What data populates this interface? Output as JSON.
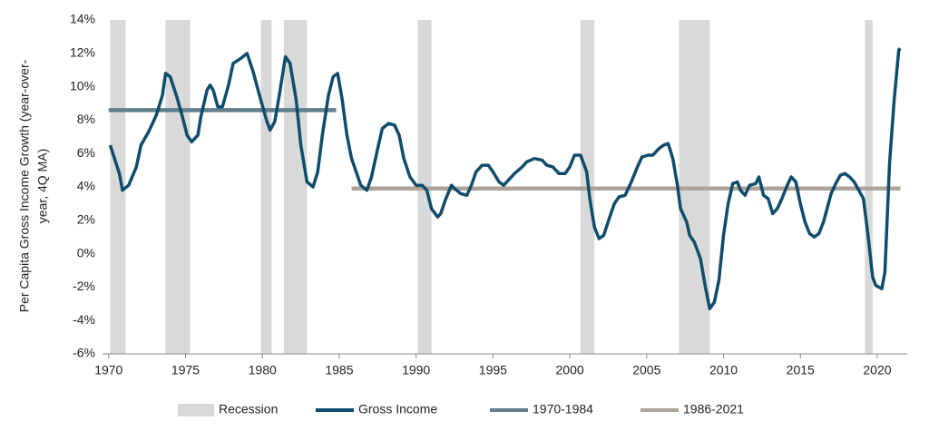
{
  "chart_data": {
    "type": "line",
    "y_label": [
      "Per Capita Gross Income Growth (year-over-",
      "year, 4Q MA)"
    ],
    "xlim": [
      1969.6,
      2021.95
    ],
    "xticks": [
      1970,
      1975,
      1980,
      1985,
      1990,
      1995,
      2000,
      2005,
      2010,
      2015,
      2020
    ],
    "ylim": [
      -6,
      14
    ],
    "yticks": [
      {
        "value": -6,
        "label": "-6%"
      },
      {
        "value": -4,
        "label": "-4%"
      },
      {
        "value": -2,
        "label": "-2%"
      },
      {
        "value": 0,
        "label": "0%"
      },
      {
        "value": 2,
        "label": "2%"
      },
      {
        "value": 4,
        "label": "4%"
      },
      {
        "value": 6,
        "label": "6%"
      },
      {
        "value": 8,
        "label": "8%"
      },
      {
        "value": 10,
        "label": "10%"
      },
      {
        "value": 12,
        "label": "12%"
      },
      {
        "value": 14,
        "label": "14%"
      }
    ],
    "grid": false,
    "legend": "bottom",
    "bands": {
      "name": "Recession",
      "color": "#d9d9d9",
      "ranges": [
        [
          1970.1,
          1971.1
        ],
        [
          1973.7,
          1975.3
        ],
        [
          1979.9,
          1980.6
        ],
        [
          1981.4,
          1982.9
        ],
        [
          1990.1,
          1991.0
        ],
        [
          2000.7,
          2001.6
        ],
        [
          2007.1,
          2009.1
        ],
        [
          2019.2,
          2019.7
        ]
      ]
    },
    "series": [
      {
        "name": "Gross Income",
        "color": "#0f4c6b",
        "x": [
          1970.1,
          1970.7,
          1970.9,
          1971.3,
          1971.8,
          1972.1,
          1972.6,
          1973.1,
          1973.5,
          1973.7,
          1974.0,
          1974.4,
          1974.8,
          1975.1,
          1975.4,
          1975.8,
          1976.0,
          1976.4,
          1976.6,
          1976.8,
          1977.1,
          1977.4,
          1977.8,
          1978.1,
          1978.6,
          1979.0,
          1979.4,
          1979.9,
          1980.3,
          1980.5,
          1980.8,
          1981.1,
          1981.5,
          1981.8,
          1982.2,
          1982.5,
          1982.9,
          1983.3,
          1983.6,
          1983.9,
          1984.3,
          1984.6,
          1984.9,
          1985.2,
          1985.5,
          1985.8,
          1986.1,
          1986.4,
          1986.8,
          1987.1,
          1987.5,
          1987.8,
          1988.2,
          1988.6,
          1988.9,
          1989.2,
          1989.6,
          1990.0,
          1990.4,
          1990.7,
          1991.0,
          1991.4,
          1991.6,
          1991.9,
          1992.3,
          1992.5,
          1992.9,
          1993.3,
          1993.6,
          1993.9,
          1994.3,
          1994.7,
          1995.0,
          1995.4,
          1995.7,
          1996.1,
          1996.4,
          1996.9,
          1997.2,
          1997.7,
          1998.2,
          1998.5,
          1998.9,
          1999.3,
          1999.7,
          2000.0,
          2000.3,
          2000.7,
          2001.1,
          2001.3,
          2001.6,
          2001.9,
          2002.2,
          2002.6,
          2002.9,
          2003.2,
          2003.6,
          2004.0,
          2004.4,
          2004.7,
          2005.1,
          2005.4,
          2005.8,
          2006.1,
          2006.4,
          2006.7,
          2007.0,
          2007.2,
          2007.6,
          2007.8,
          2008.1,
          2008.5,
          2008.8,
          2009.1,
          2009.4,
          2009.7,
          2010.0,
          2010.3,
          2010.6,
          2010.9,
          2011.1,
          2011.4,
          2011.7,
          2012.1,
          2012.3,
          2012.6,
          2012.9,
          2013.2,
          2013.5,
          2013.8,
          2014.1,
          2014.4,
          2014.7,
          2015.0,
          2015.3,
          2015.6,
          2015.9,
          2016.2,
          2016.5,
          2016.8,
          2017.0,
          2017.3,
          2017.6,
          2017.9,
          2018.2,
          2018.5,
          2018.8,
          2019.1,
          2019.4,
          2019.7,
          2019.9,
          2020.3,
          2020.5,
          2020.8,
          2021.1,
          2021.4,
          2021.5
        ],
        "values": [
          6.5,
          4.8,
          3.8,
          4.1,
          5.2,
          6.5,
          7.3,
          8.3,
          9.5,
          10.8,
          10.6,
          9.5,
          8.2,
          7.1,
          6.7,
          7.1,
          8.2,
          9.8,
          10.1,
          9.8,
          8.8,
          8.8,
          10.1,
          11.4,
          11.7,
          12.0,
          10.9,
          9.2,
          7.9,
          7.4,
          7.9,
          9.5,
          11.8,
          11.4,
          9.2,
          6.5,
          4.3,
          4.0,
          4.9,
          7.1,
          9.5,
          10.6,
          10.8,
          9.2,
          7.1,
          5.7,
          4.9,
          4.1,
          3.8,
          4.6,
          6.3,
          7.5,
          7.8,
          7.7,
          7.1,
          5.7,
          4.6,
          4.1,
          4.1,
          3.8,
          2.7,
          2.2,
          2.4,
          3.2,
          4.1,
          3.9,
          3.6,
          3.5,
          4.1,
          4.9,
          5.3,
          5.3,
          4.9,
          4.3,
          4.1,
          4.5,
          4.8,
          5.2,
          5.5,
          5.7,
          5.6,
          5.3,
          5.2,
          4.8,
          4.8,
          5.2,
          5.9,
          5.9,
          4.9,
          3.3,
          1.6,
          0.9,
          1.1,
          2.2,
          3.0,
          3.4,
          3.5,
          4.3,
          5.2,
          5.8,
          5.9,
          5.9,
          6.3,
          6.5,
          6.6,
          5.7,
          4.1,
          2.7,
          1.9,
          1.1,
          0.7,
          -0.3,
          -1.9,
          -3.3,
          -2.9,
          -1.6,
          1.1,
          3.0,
          4.2,
          4.3,
          3.8,
          3.5,
          4.1,
          4.2,
          4.6,
          3.5,
          3.3,
          2.4,
          2.7,
          3.3,
          4.0,
          4.6,
          4.3,
          3.0,
          1.9,
          1.2,
          1.0,
          1.2,
          1.9,
          2.9,
          3.6,
          4.2,
          4.7,
          4.8,
          4.6,
          4.3,
          3.8,
          3.3,
          1.1,
          -1.4,
          -1.9,
          -2.1,
          -1.1,
          5.4,
          9.2,
          12.2,
          12.3
        ]
      },
      {
        "name": "1970-1984",
        "color": "#5f7f8c",
        "x": [
          1970.0,
          1984.8
        ],
        "values": [
          8.6,
          8.6
        ]
      },
      {
        "name": "1986-2021",
        "color": "#ada398",
        "x": [
          1985.8,
          2021.5
        ],
        "values": [
          3.9,
          3.9
        ]
      }
    ]
  }
}
